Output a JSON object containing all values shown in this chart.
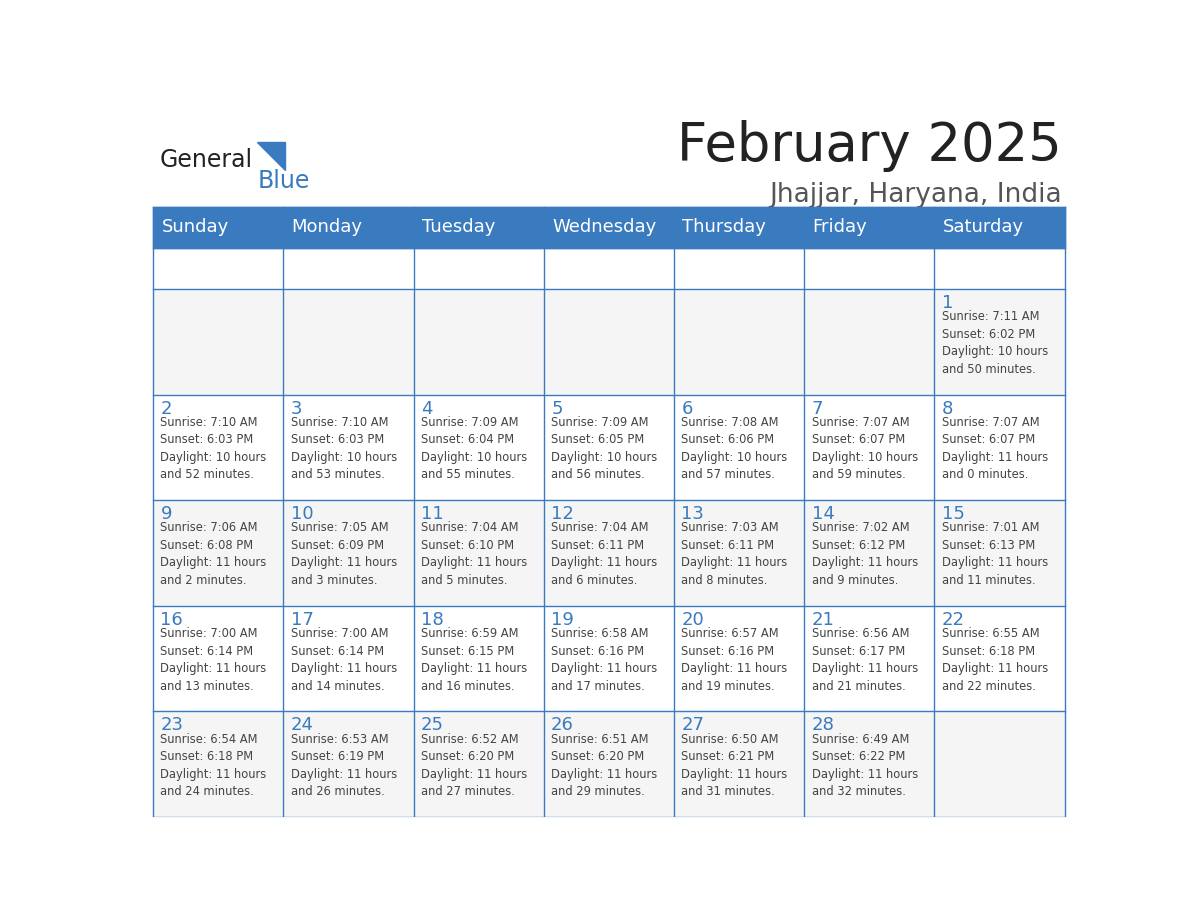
{
  "title": "February 2025",
  "subtitle": "Jhajjar, Haryana, India",
  "header_color": "#3a7bbf",
  "header_text_color": "#ffffff",
  "border_color": "#3a7bbf",
  "day_names": [
    "Sunday",
    "Monday",
    "Tuesday",
    "Wednesday",
    "Thursday",
    "Friday",
    "Saturday"
  ],
  "title_color": "#222222",
  "subtitle_color": "#555555",
  "day_number_color": "#3a7bbf",
  "info_color": "#444444",
  "logo_general_color": "#222222",
  "logo_blue_color": "#3a7bbf",
  "row_bg_colors": [
    "#f5f5f5",
    "#ffffff",
    "#f5f5f5",
    "#ffffff",
    "#f5f5f5"
  ],
  "calendar": [
    [
      null,
      null,
      null,
      null,
      null,
      null,
      {
        "day": 1,
        "sunrise": "7:11 AM",
        "sunset": "6:02 PM",
        "daylight": "10 hours\nand 50 minutes."
      }
    ],
    [
      {
        "day": 2,
        "sunrise": "7:10 AM",
        "sunset": "6:03 PM",
        "daylight": "10 hours\nand 52 minutes."
      },
      {
        "day": 3,
        "sunrise": "7:10 AM",
        "sunset": "6:03 PM",
        "daylight": "10 hours\nand 53 minutes."
      },
      {
        "day": 4,
        "sunrise": "7:09 AM",
        "sunset": "6:04 PM",
        "daylight": "10 hours\nand 55 minutes."
      },
      {
        "day": 5,
        "sunrise": "7:09 AM",
        "sunset": "6:05 PM",
        "daylight": "10 hours\nand 56 minutes."
      },
      {
        "day": 6,
        "sunrise": "7:08 AM",
        "sunset": "6:06 PM",
        "daylight": "10 hours\nand 57 minutes."
      },
      {
        "day": 7,
        "sunrise": "7:07 AM",
        "sunset": "6:07 PM",
        "daylight": "10 hours\nand 59 minutes."
      },
      {
        "day": 8,
        "sunrise": "7:07 AM",
        "sunset": "6:07 PM",
        "daylight": "11 hours\nand 0 minutes."
      }
    ],
    [
      {
        "day": 9,
        "sunrise": "7:06 AM",
        "sunset": "6:08 PM",
        "daylight": "11 hours\nand 2 minutes."
      },
      {
        "day": 10,
        "sunrise": "7:05 AM",
        "sunset": "6:09 PM",
        "daylight": "11 hours\nand 3 minutes."
      },
      {
        "day": 11,
        "sunrise": "7:04 AM",
        "sunset": "6:10 PM",
        "daylight": "11 hours\nand 5 minutes."
      },
      {
        "day": 12,
        "sunrise": "7:04 AM",
        "sunset": "6:11 PM",
        "daylight": "11 hours\nand 6 minutes."
      },
      {
        "day": 13,
        "sunrise": "7:03 AM",
        "sunset": "6:11 PM",
        "daylight": "11 hours\nand 8 minutes."
      },
      {
        "day": 14,
        "sunrise": "7:02 AM",
        "sunset": "6:12 PM",
        "daylight": "11 hours\nand 9 minutes."
      },
      {
        "day": 15,
        "sunrise": "7:01 AM",
        "sunset": "6:13 PM",
        "daylight": "11 hours\nand 11 minutes."
      }
    ],
    [
      {
        "day": 16,
        "sunrise": "7:00 AM",
        "sunset": "6:14 PM",
        "daylight": "11 hours\nand 13 minutes."
      },
      {
        "day": 17,
        "sunrise": "7:00 AM",
        "sunset": "6:14 PM",
        "daylight": "11 hours\nand 14 minutes."
      },
      {
        "day": 18,
        "sunrise": "6:59 AM",
        "sunset": "6:15 PM",
        "daylight": "11 hours\nand 16 minutes."
      },
      {
        "day": 19,
        "sunrise": "6:58 AM",
        "sunset": "6:16 PM",
        "daylight": "11 hours\nand 17 minutes."
      },
      {
        "day": 20,
        "sunrise": "6:57 AM",
        "sunset": "6:16 PM",
        "daylight": "11 hours\nand 19 minutes."
      },
      {
        "day": 21,
        "sunrise": "6:56 AM",
        "sunset": "6:17 PM",
        "daylight": "11 hours\nand 21 minutes."
      },
      {
        "day": 22,
        "sunrise": "6:55 AM",
        "sunset": "6:18 PM",
        "daylight": "11 hours\nand 22 minutes."
      }
    ],
    [
      {
        "day": 23,
        "sunrise": "6:54 AM",
        "sunset": "6:18 PM",
        "daylight": "11 hours\nand 24 minutes."
      },
      {
        "day": 24,
        "sunrise": "6:53 AM",
        "sunset": "6:19 PM",
        "daylight": "11 hours\nand 26 minutes."
      },
      {
        "day": 25,
        "sunrise": "6:52 AM",
        "sunset": "6:20 PM",
        "daylight": "11 hours\nand 27 minutes."
      },
      {
        "day": 26,
        "sunrise": "6:51 AM",
        "sunset": "6:20 PM",
        "daylight": "11 hours\nand 29 minutes."
      },
      {
        "day": 27,
        "sunrise": "6:50 AM",
        "sunset": "6:21 PM",
        "daylight": "11 hours\nand 31 minutes."
      },
      {
        "day": 28,
        "sunrise": "6:49 AM",
        "sunset": "6:22 PM",
        "daylight": "11 hours\nand 32 minutes."
      },
      null
    ]
  ]
}
